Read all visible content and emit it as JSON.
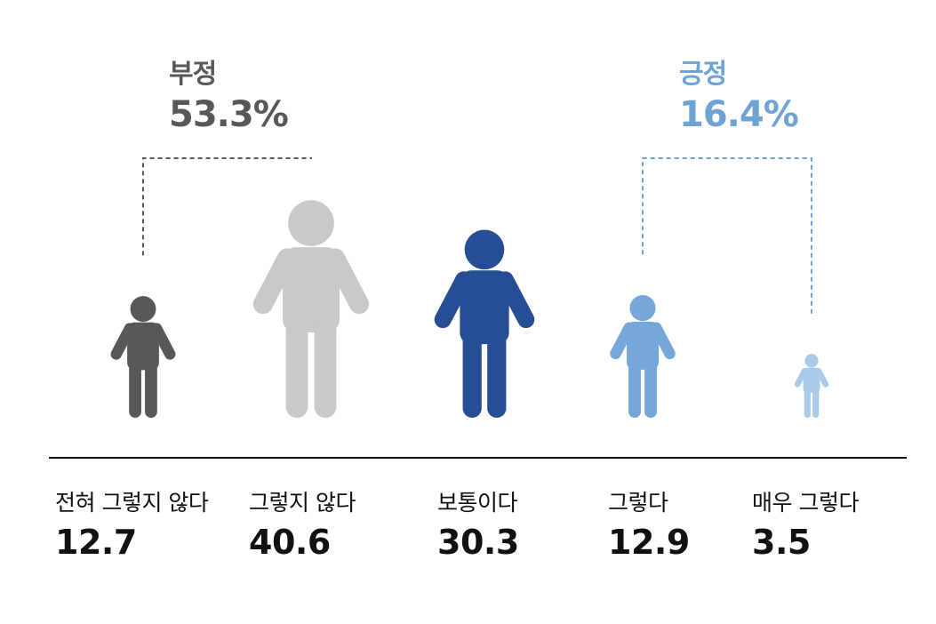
{
  "chart_data": {
    "type": "pictograph",
    "unit": "%",
    "categories": [
      "전혀 그렇지 않다",
      "그렇지 않다",
      "보통이다",
      "그렇다",
      "매우 그렇다"
    ],
    "values": [
      12.7,
      40.6,
      30.3,
      12.9,
      3.5
    ],
    "value_labels": [
      "12.7",
      "40.6",
      "30.3",
      "12.9",
      "3.5"
    ],
    "colors": [
      "#58585a",
      "#c9c9c9",
      "#264e94",
      "#75a8d8",
      "#a9cbe9"
    ],
    "groups": [
      {
        "title": "부정",
        "value_label": "53.3%",
        "value": 53.3,
        "categories": [
          0,
          1
        ],
        "color": "#58585a"
      },
      {
        "title": "긍정",
        "value_label": "16.4%",
        "value": 16.4,
        "categories": [
          3,
          4
        ],
        "color": "#6fa3d6"
      }
    ]
  }
}
